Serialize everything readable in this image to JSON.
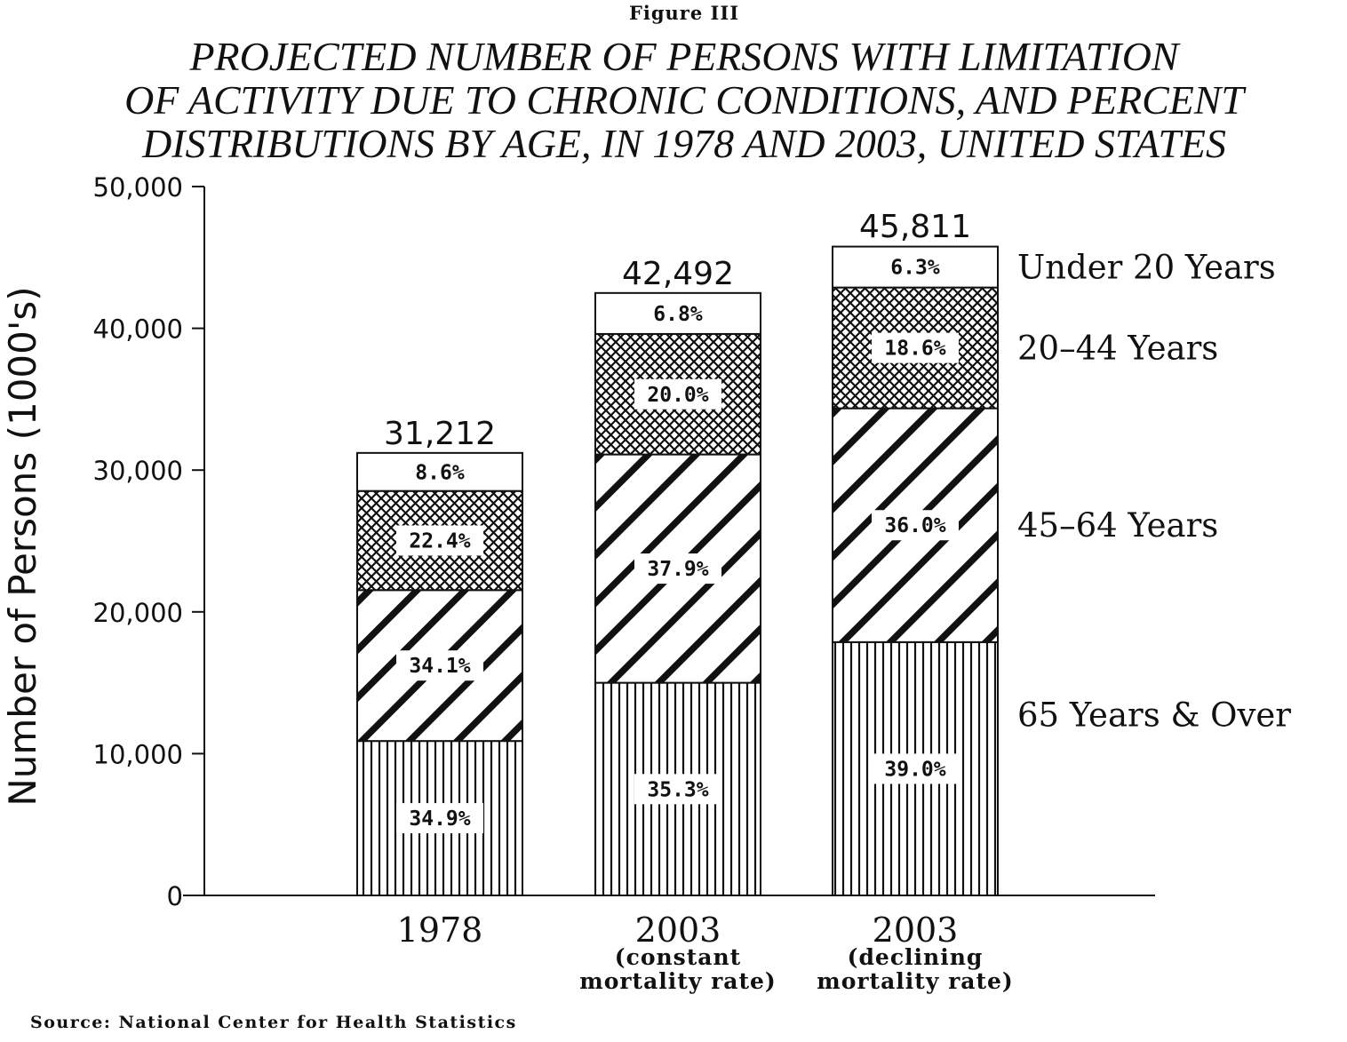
{
  "figure_label": "Figure III",
  "title_lines": [
    "PROJECTED NUMBER OF PERSONS WITH LIMITATION",
    "OF ACTIVITY DUE TO CHRONIC CONDITIONS, AND PERCENT",
    "DISTRIBUTIONS BY AGE, IN 1978 AND 2003, UNITED STATES"
  ],
  "source": "Source:  National Center for Health Statistics",
  "colors": {
    "ink": "#111111",
    "background": "#ffffff"
  },
  "chart_data": {
    "type": "bar",
    "stacked": true,
    "title": "PROJECTED NUMBER OF PERSONS WITH LIMITATION OF ACTIVITY DUE TO CHRONIC CONDITIONS, AND PERCENT DISTRIBUTIONS BY AGE, IN 1978 AND 2003, UNITED STATES",
    "ylabel": "Number of Persons (1000's)",
    "xlabel": "",
    "ylim": [
      0,
      50000
    ],
    "yticks": [
      0,
      10000,
      20000,
      30000,
      40000,
      50000
    ],
    "ytick_labels": [
      "0",
      "10,000",
      "20,000",
      "30,000",
      "40,000",
      "50,000"
    ],
    "categories": [
      {
        "label": "1978",
        "sublabel": []
      },
      {
        "label": "2003",
        "sublabel": [
          "(constant",
          "mortality rate)"
        ]
      },
      {
        "label": "2003",
        "sublabel": [
          "(declining",
          "mortality rate)"
        ]
      }
    ],
    "totals": [
      31212,
      42492,
      45811
    ],
    "total_labels": [
      "31,212",
      "42,492",
      "45,811"
    ],
    "series": [
      {
        "name": "65 Years & Over",
        "pattern": "vertical-lines",
        "percents": [
          34.9,
          35.3,
          39.0
        ],
        "labels": [
          "34.9%",
          "35.3%",
          "39.0%"
        ]
      },
      {
        "name": "45–64 Years",
        "pattern": "diagonal-lines",
        "percents": [
          34.1,
          37.9,
          36.0
        ],
        "labels": [
          "34.1%",
          "37.9%",
          "36.0%"
        ]
      },
      {
        "name": "20–44 Years",
        "pattern": "crosshatch",
        "percents": [
          22.4,
          20.0,
          18.6
        ],
        "labels": [
          "22.4%",
          "20.0%",
          "18.6%"
        ]
      },
      {
        "name": "Under 20 Years",
        "pattern": "blank",
        "percents": [
          8.6,
          6.8,
          6.3
        ],
        "labels": [
          "8.6%",
          "6.8%",
          "6.3%"
        ]
      }
    ],
    "legend_position": "right"
  }
}
